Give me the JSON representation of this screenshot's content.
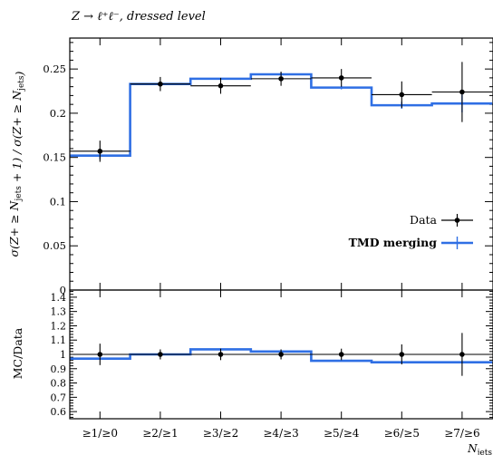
{
  "chart_data": [
    {
      "type": "line",
      "title": "Z → ℓ⁺ℓ⁻, dressed level",
      "ylabel": "σ(Z+ ≥ N_jets + 1) / σ(Z+ ≥ N_jets)",
      "xlabel": "N_jets",
      "categories": [
        "≥1/≥0",
        "≥2/≥1",
        "≥3/≥2",
        "≥4/≥3",
        "≥5/≥4",
        "≥6/≥5",
        "≥7/≥6"
      ],
      "ylim": [
        0,
        0.285
      ],
      "yticks": [
        "0",
        "0.05",
        "0.1",
        "0.15",
        "0.2",
        "0.25"
      ],
      "legend_position": "middle-right",
      "series": [
        {
          "name": "Data",
          "style": "points",
          "color": "#000000",
          "values": [
            0.157,
            0.233,
            0.231,
            0.239,
            0.24,
            0.221,
            0.224
          ],
          "errors": [
            0.012,
            0.008,
            0.009,
            0.008,
            0.01,
            0.015,
            0.034
          ]
        },
        {
          "name": "TMD merging",
          "style": "histogram",
          "color": "#2f6fe4",
          "values": [
            0.152,
            0.233,
            0.239,
            0.244,
            0.229,
            0.209,
            0.211
          ],
          "errors": [
            0.004,
            0.001,
            0.001,
            0.002,
            0.002,
            0.004,
            0.01
          ]
        }
      ]
    },
    {
      "type": "line",
      "ylabel": "MC/Data",
      "xlabel": "N_jets",
      "ylim": [
        0.55,
        1.45
      ],
      "yticks": [
        "0.6",
        "0.7",
        "0.8",
        "0.9",
        "1",
        "1.1",
        "1.2",
        "1.3",
        "1.4"
      ],
      "series": [
        {
          "name": "Data",
          "style": "points",
          "color": "#000000",
          "values": [
            1.0,
            1.0,
            1.0,
            1.0,
            1.0,
            1.0,
            1.0
          ],
          "errors": [
            0.075,
            0.035,
            0.04,
            0.035,
            0.04,
            0.07,
            0.15
          ]
        },
        {
          "name": "TMD merging",
          "style": "histogram",
          "color": "#2f6fe4",
          "values": [
            0.97,
            1.0,
            1.035,
            1.02,
            0.955,
            0.945,
            0.945
          ]
        }
      ]
    }
  ]
}
